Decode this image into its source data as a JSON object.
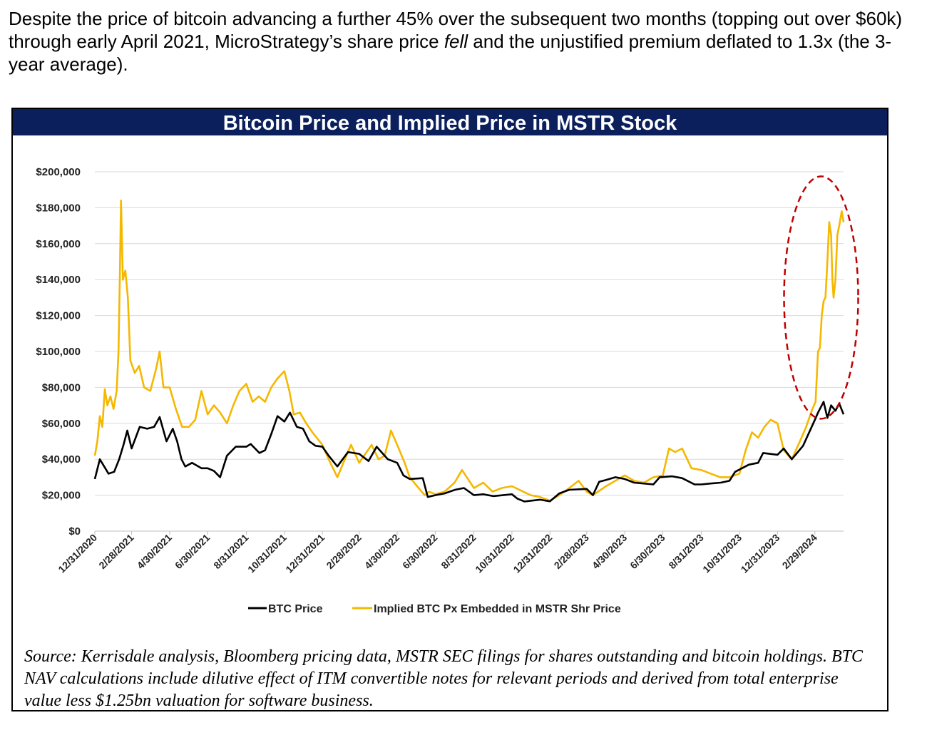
{
  "intro": {
    "part1": "Despite the price of bitcoin advancing a further 45% over the subsequent two months (topping out over $60k) through early April 2021, MicroStrategy’s share price ",
    "emph": "fell",
    "part2": " and the unjustified premium deflated to 1.3x (the 3-year average)."
  },
  "source_note": "Source: Kerrisdale analysis, Bloomberg pricing data, MSTR SEC filings for shares outstanding and bitcoin holdings. BTC NAV calculations include dilutive effect of ITM convertible notes for relevant periods and derived from total enterprise value less $1.25bn valuation for software business.",
  "colors": {
    "title_bar": "#0a1f5c",
    "btc": "#000000",
    "implied": "#f5b800",
    "annotation": "#c00000",
    "grid": "#d9d9d9"
  },
  "chart_data": {
    "type": "line",
    "title": "Bitcoin Price and Implied Price in MSTR Stock",
    "xlabel": "",
    "ylabel": "",
    "ylim": [
      0,
      200000
    ],
    "y_ticks": [
      0,
      20000,
      40000,
      60000,
      80000,
      100000,
      120000,
      140000,
      160000,
      180000,
      200000
    ],
    "y_tick_labels": [
      "$0",
      "$20,000",
      "$40,000",
      "$60,000",
      "$80,000",
      "$100,000",
      "$120,000",
      "$140,000",
      "$160,000",
      "$180,000",
      "$200,000"
    ],
    "x_ticks": [
      "12/31/2020",
      "2/28/2021",
      "4/30/2021",
      "6/30/2021",
      "8/31/2021",
      "10/31/2021",
      "12/31/2021",
      "2/28/2022",
      "4/30/2022",
      "6/30/2022",
      "8/31/2022",
      "10/31/2022",
      "12/31/2022",
      "2/28/2023",
      "4/30/2023",
      "6/30/2023",
      "8/31/2023",
      "10/31/2023",
      "12/31/2023",
      "2/29/2024"
    ],
    "x_range": [
      "2020-12-31",
      "2024-04-15"
    ],
    "grid": "horizontal",
    "legend": "bottom",
    "annotation": "dashed red ellipse highlighting 2024 spike",
    "series": [
      {
        "name": "BTC Price",
        "color": "#000000",
        "x": [
          "2020-12-31",
          "2021-01-08",
          "2021-01-15",
          "2021-01-22",
          "2021-01-31",
          "2021-02-08",
          "2021-02-15",
          "2021-02-21",
          "2021-02-28",
          "2021-03-13",
          "2021-03-25",
          "2021-04-05",
          "2021-04-14",
          "2021-04-25",
          "2021-05-05",
          "2021-05-12",
          "2021-05-19",
          "2021-05-25",
          "2021-06-05",
          "2021-06-20",
          "2021-06-30",
          "2021-07-10",
          "2021-07-20",
          "2021-07-31",
          "2021-08-14",
          "2021-08-31",
          "2021-09-07",
          "2021-09-21",
          "2021-09-30",
          "2021-10-10",
          "2021-10-20",
          "2021-10-31",
          "2021-11-09",
          "2021-11-20",
          "2021-11-30",
          "2021-12-10",
          "2021-12-20",
          "2021-12-31",
          "2022-01-10",
          "2022-01-24",
          "2022-02-10",
          "2022-02-28",
          "2022-03-15",
          "2022-03-28",
          "2022-04-15",
          "2022-04-30",
          "2022-05-10",
          "2022-05-20",
          "2022-06-10",
          "2022-06-18",
          "2022-06-30",
          "2022-07-15",
          "2022-08-01",
          "2022-08-15",
          "2022-08-31",
          "2022-09-15",
          "2022-10-01",
          "2022-10-31",
          "2022-11-09",
          "2022-11-20",
          "2022-12-15",
          "2022-12-31",
          "2023-01-15",
          "2023-01-31",
          "2023-02-28",
          "2023-03-10",
          "2023-03-20",
          "2023-03-31",
          "2023-04-15",
          "2023-04-30",
          "2023-05-15",
          "2023-06-15",
          "2023-06-25",
          "2023-07-15",
          "2023-07-31",
          "2023-08-20",
          "2023-08-31",
          "2023-09-15",
          "2023-10-01",
          "2023-10-15",
          "2023-10-24",
          "2023-11-15",
          "2023-11-30",
          "2023-12-08",
          "2023-12-31",
          "2024-01-10",
          "2024-01-23",
          "2024-02-10",
          "2024-02-29",
          "2024-03-05",
          "2024-03-14",
          "2024-03-20",
          "2024-03-26",
          "2024-04-02",
          "2024-04-08",
          "2024-04-15"
        ],
        "values": [
          29000,
          40000,
          36000,
          32000,
          33000,
          40000,
          48000,
          56000,
          46000,
          58000,
          57000,
          58000,
          63500,
          50000,
          57000,
          50000,
          40000,
          36000,
          38000,
          35000,
          35000,
          33500,
          30000,
          42000,
          47000,
          47000,
          48500,
          43500,
          45000,
          54000,
          64000,
          61000,
          66000,
          58000,
          57000,
          50000,
          47500,
          47000,
          42000,
          36000,
          44000,
          43000,
          39000,
          47000,
          40000,
          38000,
          31000,
          29000,
          29500,
          19000,
          20000,
          21000,
          23000,
          24000,
          20000,
          20500,
          19500,
          20500,
          18000,
          16500,
          17500,
          16600,
          21000,
          23000,
          23500,
          20000,
          27500,
          28500,
          30000,
          29000,
          27000,
          26000,
          30000,
          30500,
          29500,
          26000,
          26000,
          26500,
          27000,
          28000,
          33000,
          37000,
          38000,
          43500,
          42500,
          46000,
          40000,
          47500,
          62000,
          66000,
          72000,
          63000,
          70000,
          67000,
          71000,
          65000
        ]
      },
      {
        "name": "Implied BTC Px Embedded in MSTR Shr Price",
        "color": "#f5b800",
        "x": [
          "2020-12-31",
          "2021-01-04",
          "2021-01-08",
          "2021-01-12",
          "2021-01-16",
          "2021-01-20",
          "2021-01-25",
          "2021-01-30",
          "2021-02-04",
          "2021-02-07",
          "2021-02-09",
          "2021-02-11",
          "2021-02-14",
          "2021-02-18",
          "2021-02-22",
          "2021-02-26",
          "2021-03-05",
          "2021-03-12",
          "2021-03-20",
          "2021-03-30",
          "2021-04-08",
          "2021-04-14",
          "2021-04-20",
          "2021-04-30",
          "2021-05-10",
          "2021-05-20",
          "2021-05-31",
          "2021-06-10",
          "2021-06-20",
          "2021-06-30",
          "2021-07-10",
          "2021-07-20",
          "2021-07-31",
          "2021-08-10",
          "2021-08-20",
          "2021-08-31",
          "2021-09-10",
          "2021-09-20",
          "2021-09-30",
          "2021-10-10",
          "2021-10-20",
          "2021-10-31",
          "2021-11-08",
          "2021-11-15",
          "2021-11-25",
          "2021-12-05",
          "2021-12-15",
          "2021-12-31",
          "2022-01-10",
          "2022-01-24",
          "2022-02-05",
          "2022-02-15",
          "2022-02-28",
          "2022-03-10",
          "2022-03-20",
          "2022-03-31",
          "2022-04-10",
          "2022-04-20",
          "2022-04-30",
          "2022-05-12",
          "2022-05-20",
          "2022-06-01",
          "2022-06-13",
          "2022-06-20",
          "2022-06-30",
          "2022-07-15",
          "2022-07-31",
          "2022-08-12",
          "2022-08-31",
          "2022-09-15",
          "2022-09-30",
          "2022-10-15",
          "2022-10-31",
          "2022-11-15",
          "2022-11-30",
          "2022-12-15",
          "2022-12-31",
          "2023-01-15",
          "2023-01-31",
          "2023-02-15",
          "2023-02-28",
          "2023-03-10",
          "2023-03-31",
          "2023-04-15",
          "2023-04-30",
          "2023-05-15",
          "2023-05-31",
          "2023-06-15",
          "2023-06-30",
          "2023-07-10",
          "2023-07-20",
          "2023-07-31",
          "2023-08-15",
          "2023-08-31",
          "2023-09-15",
          "2023-09-30",
          "2023-10-15",
          "2023-10-31",
          "2023-11-10",
          "2023-11-20",
          "2023-11-30",
          "2023-12-10",
          "2023-12-20",
          "2023-12-31",
          "2024-01-10",
          "2024-01-23",
          "2024-02-05",
          "2024-02-15",
          "2024-02-25",
          "2024-03-01",
          "2024-03-05",
          "2024-03-08",
          "2024-03-11",
          "2024-03-14",
          "2024-03-17",
          "2024-03-20",
          "2024-03-23",
          "2024-03-26",
          "2024-03-28",
          "2024-03-30",
          "2024-04-02",
          "2024-04-05",
          "2024-04-08",
          "2024-04-12",
          "2024-04-15"
        ],
        "values": [
          42000,
          50000,
          64000,
          58000,
          79000,
          70000,
          75000,
          68000,
          78000,
          100000,
          140000,
          184000,
          140000,
          145000,
          130000,
          95000,
          88000,
          92000,
          80000,
          78000,
          90000,
          100000,
          80000,
          80000,
          68000,
          58000,
          58000,
          62000,
          78000,
          65000,
          70000,
          66000,
          60000,
          70000,
          78000,
          82000,
          72000,
          75000,
          72000,
          80000,
          85000,
          89000,
          78000,
          65000,
          66000,
          60000,
          55000,
          48000,
          40000,
          30000,
          40000,
          48000,
          38000,
          43000,
          48000,
          40000,
          42000,
          56000,
          48000,
          38000,
          30000,
          25000,
          20000,
          22000,
          20500,
          22000,
          27000,
          34000,
          24000,
          27000,
          22000,
          24000,
          25000,
          22500,
          20000,
          19000,
          17000,
          20000,
          24000,
          28000,
          22000,
          20000,
          25000,
          28000,
          31000,
          28000,
          27000,
          30000,
          31000,
          46000,
          44000,
          46000,
          35000,
          34000,
          32000,
          30000,
          30000,
          32000,
          45000,
          55000,
          52000,
          58000,
          62000,
          60000,
          45000,
          40000,
          50000,
          58000,
          68000,
          72000,
          100000,
          102000,
          120000,
          128000,
          130000,
          150000,
          172000,
          165000,
          140000,
          130000,
          140000,
          165000,
          170000,
          178000,
          172000
        ]
      }
    ]
  }
}
